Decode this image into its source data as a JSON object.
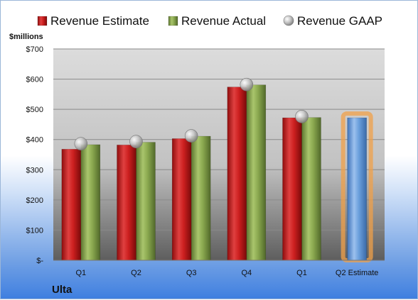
{
  "chart_data": {
    "type": "bar",
    "unit_label": "$millions",
    "company": "Ulta",
    "categories": [
      "Q1",
      "Q2",
      "Q3",
      "Q4",
      "Q1",
      "Q2 Estimate"
    ],
    "y_ticks": [
      {
        "value": 0,
        "label": "$-"
      },
      {
        "value": 100,
        "label": "$100"
      },
      {
        "value": 200,
        "label": "$200"
      },
      {
        "value": 300,
        "label": "$300"
      },
      {
        "value": 400,
        "label": "$400"
      },
      {
        "value": 500,
        "label": "$500"
      },
      {
        "value": 600,
        "label": "$600"
      },
      {
        "value": 700,
        "label": "$700"
      }
    ],
    "ylim": [
      0,
      700
    ],
    "grid": true,
    "legend_position": "top",
    "series": [
      {
        "name": "Revenue Estimate",
        "kind": "bar",
        "color": "#cc1f1f",
        "values": [
          368,
          382,
          403,
          574,
          472,
          null
        ]
      },
      {
        "name": "Revenue Actual",
        "kind": "bar",
        "color": "#8aa84f",
        "values": [
          383,
          391,
          411,
          581,
          473,
          null
        ]
      },
      {
        "name": "Revenue GAAP",
        "kind": "marker",
        "color": "#b8b8b8",
        "values": [
          386,
          393,
          412,
          582,
          476,
          null
        ]
      },
      {
        "name": "Q2 Estimate",
        "kind": "bar",
        "color": "#6a9fdc",
        "highlight": "#f0a048",
        "values": [
          null,
          null,
          null,
          null,
          null,
          472
        ],
        "legend": false
      }
    ]
  }
}
